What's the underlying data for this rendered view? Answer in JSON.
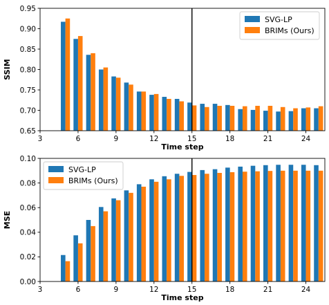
{
  "chart_data": [
    {
      "type": "bar",
      "xlabel": "Time step",
      "ylabel": "SSIM",
      "xlim": [
        3,
        25.5
      ],
      "ylim": [
        0.65,
        0.95
      ],
      "xticks": [
        3,
        6,
        9,
        12,
        15,
        18,
        21,
        24
      ],
      "yticks": [
        0.65,
        0.7,
        0.75,
        0.8,
        0.85,
        0.9,
        0.95
      ],
      "ytick_labels": [
        "0.65",
        "0.70",
        "0.75",
        "0.80",
        "0.85",
        "0.90",
        "0.95"
      ],
      "grid": false,
      "legend_position": "top-right",
      "vline_x": 15,
      "x": [
        5,
        6,
        7,
        8,
        9,
        10,
        11,
        12,
        13,
        14,
        15,
        16,
        17,
        18,
        19,
        20,
        21,
        22,
        23,
        24,
        25
      ],
      "series": [
        {
          "name": "SVG-LP",
          "color": "#1f77b4",
          "values": [
            0.917,
            0.875,
            0.836,
            0.8,
            0.783,
            0.768,
            0.746,
            0.738,
            0.733,
            0.728,
            0.719,
            0.716,
            0.716,
            0.713,
            0.703,
            0.701,
            0.699,
            0.697,
            0.698,
            0.705,
            0.705
          ]
        },
        {
          "name": "BRIMs (Ours)",
          "color": "#ff7f0e",
          "values": [
            0.925,
            0.882,
            0.84,
            0.805,
            0.78,
            0.763,
            0.746,
            0.74,
            0.728,
            0.722,
            0.712,
            0.708,
            0.711,
            0.711,
            0.71,
            0.711,
            0.711,
            0.708,
            0.705,
            0.707,
            0.71
          ]
        }
      ]
    },
    {
      "type": "bar",
      "xlabel": "Time step",
      "ylabel": "MSE",
      "xlim": [
        3,
        25.5
      ],
      "ylim": [
        0.0,
        0.1
      ],
      "xticks": [
        3,
        6,
        9,
        12,
        15,
        18,
        21,
        24
      ],
      "yticks": [
        0.0,
        0.02,
        0.04,
        0.06,
        0.08,
        0.1
      ],
      "ytick_labels": [
        "0.00",
        "0.02",
        "0.04",
        "0.06",
        "0.08",
        "0.10"
      ],
      "grid": false,
      "legend_position": "top-left",
      "vline_x": 15,
      "x": [
        5,
        6,
        7,
        8,
        9,
        10,
        11,
        12,
        13,
        14,
        15,
        16,
        17,
        18,
        19,
        20,
        21,
        22,
        23,
        24,
        25
      ],
      "series": [
        {
          "name": "SVG-LP",
          "color": "#1f77b4",
          "values": [
            0.0215,
            0.0375,
            0.05,
            0.0605,
            0.0675,
            0.074,
            0.079,
            0.083,
            0.0855,
            0.0875,
            0.089,
            0.0905,
            0.0912,
            0.0925,
            0.0933,
            0.094,
            0.0945,
            0.0948,
            0.0948,
            0.0948,
            0.0945
          ]
        },
        {
          "name": "BRIMs (Ours)",
          "color": "#ff7f0e",
          "values": [
            0.0165,
            0.031,
            0.045,
            0.057,
            0.066,
            0.072,
            0.077,
            0.081,
            0.083,
            0.0858,
            0.0865,
            0.0875,
            0.0882,
            0.0888,
            0.0892,
            0.0895,
            0.0898,
            0.09,
            0.09,
            0.09,
            0.09
          ]
        }
      ]
    }
  ]
}
